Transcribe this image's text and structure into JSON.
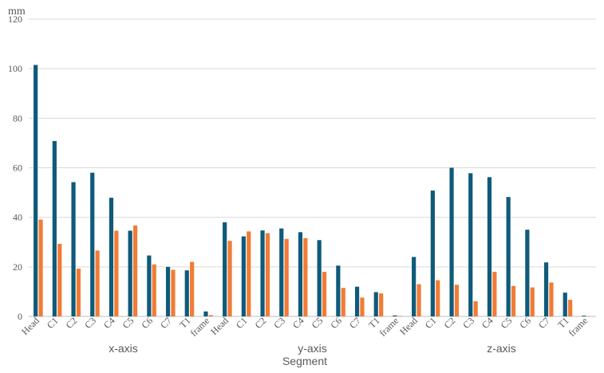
{
  "chart_data": {
    "type": "bar",
    "unit_label": "mm",
    "xlabel": "Segment",
    "ylabel": "",
    "ylim": [
      0,
      120
    ],
    "yticks": [
      0,
      20,
      40,
      60,
      80,
      100,
      120
    ],
    "grid": true,
    "groups": [
      "x-axis",
      "y-axis",
      "z-axis"
    ],
    "categories": [
      "Head",
      "C1",
      "C2",
      "C3",
      "C4",
      "C5",
      "C6",
      "C7",
      "T1",
      "frame",
      "Head",
      "C1",
      "C2",
      "C3",
      "C4",
      "C5",
      "C6",
      "C7",
      "T1",
      "frame",
      "Head",
      "C1",
      "C2",
      "C3",
      "C4",
      "C5",
      "C6",
      "C7",
      "T1",
      "frame"
    ],
    "series": [
      {
        "color": "#0f5a7a",
        "values": [
          101.5,
          70.8,
          54.2,
          58.0,
          47.9,
          34.6,
          24.6,
          20.0,
          18.6,
          2.0,
          38.0,
          32.3,
          34.7,
          35.5,
          34.0,
          30.8,
          20.5,
          12.0,
          9.8,
          0.4,
          24.0,
          50.8,
          60.0,
          57.8,
          56.2,
          48.2,
          35.0,
          21.8,
          9.6,
          0.3
        ]
      },
      {
        "color": "#f07c36",
        "values": [
          39.1,
          29.3,
          19.3,
          26.6,
          34.6,
          36.7,
          21.0,
          18.8,
          22.0,
          0.5,
          30.5,
          34.3,
          33.6,
          31.3,
          31.6,
          18.0,
          11.5,
          7.6,
          9.3,
          0.2,
          13.0,
          14.6,
          12.8,
          6.1,
          18.0,
          12.3,
          11.7,
          13.7,
          6.7,
          0.1
        ]
      }
    ]
  }
}
